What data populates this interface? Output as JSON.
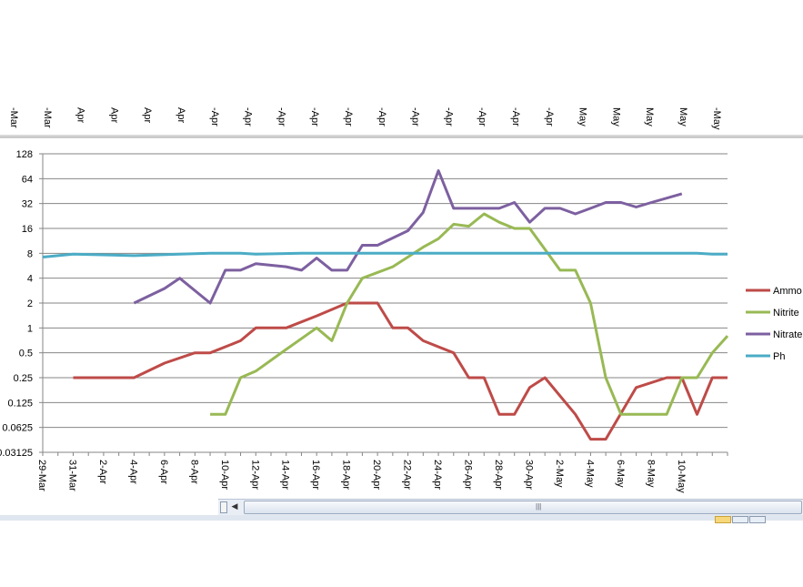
{
  "chart_data": {
    "type": "line",
    "title": "",
    "xlabel": "",
    "ylabel": "",
    "y_scale": "log2",
    "ylim": [
      0.03125,
      128
    ],
    "y_ticks": [
      "128",
      "64",
      "32",
      "16",
      "8",
      "4",
      "2",
      "1",
      "0.5",
      "0.25",
      "0.125",
      "0.0625",
      "0.03125"
    ],
    "x_start": "29-Mar",
    "x_end": "11-May",
    "x_ticks": [
      "29-Mar",
      "31-Mar",
      "2-Apr",
      "4-Apr",
      "6-Apr",
      "8-Apr",
      "10-Apr",
      "12-Apr",
      "14-Apr",
      "16-Apr",
      "18-Apr",
      "20-Apr",
      "22-Apr",
      "24-Apr",
      "26-Apr",
      "28-Apr",
      "30-Apr",
      "2-May",
      "4-May",
      "6-May",
      "8-May",
      "10-May"
    ],
    "top_header_labels": [
      "-Mar",
      "-Mar",
      "Apr",
      "Apr",
      "Apr",
      "Apr",
      "-Apr",
      "-Apr",
      "-Apr",
      "-Apr",
      "-Apr",
      "-Apr",
      "-Apr",
      "-Apr",
      "-Apr",
      "-Apr",
      "-Apr",
      "May",
      "May",
      "May",
      "May",
      "-May"
    ],
    "legend_position": "right",
    "series": [
      {
        "name": "Ammonia",
        "display_label": "Ammo",
        "color": "#be4b48",
        "points": [
          [
            2,
            0.25
          ],
          [
            6,
            0.25
          ],
          [
            8,
            0.375
          ],
          [
            10,
            0.5
          ],
          [
            11,
            0.5
          ],
          [
            13,
            0.7
          ],
          [
            14,
            1
          ],
          [
            16,
            1
          ],
          [
            18,
            1.4
          ],
          [
            20,
            2
          ],
          [
            22,
            2
          ],
          [
            23,
            1
          ],
          [
            24,
            1
          ],
          [
            25,
            0.7
          ],
          [
            27,
            0.5
          ],
          [
            28,
            0.25
          ],
          [
            29,
            0.25
          ],
          [
            30,
            0.09
          ],
          [
            31,
            0.09
          ],
          [
            32,
            0.19
          ],
          [
            33,
            0.25
          ],
          [
            35,
            0.09
          ],
          [
            36,
            0.045
          ],
          [
            37,
            0.045
          ],
          [
            39,
            0.19
          ],
          [
            41,
            0.25
          ],
          [
            42,
            0.25
          ],
          [
            43,
            0.09
          ],
          [
            44,
            0.25
          ],
          [
            45,
            0.25
          ]
        ]
      },
      {
        "name": "Nitrite",
        "display_label": "Nitrite",
        "color": "#98b954",
        "points": [
          [
            11,
            0.09
          ],
          [
            12,
            0.09
          ],
          [
            13,
            0.25
          ],
          [
            14,
            0.3
          ],
          [
            16,
            0.55
          ],
          [
            18,
            1
          ],
          [
            19,
            0.7
          ],
          [
            20,
            2
          ],
          [
            21,
            4
          ],
          [
            23,
            5.5
          ],
          [
            25,
            9.5
          ],
          [
            26,
            12
          ],
          [
            27,
            18
          ],
          [
            28,
            17
          ],
          [
            29,
            24
          ],
          [
            30,
            19
          ],
          [
            31,
            16
          ],
          [
            32,
            16
          ],
          [
            34,
            5
          ],
          [
            35,
            5
          ],
          [
            36,
            2
          ],
          [
            37,
            0.25
          ],
          [
            38,
            0.09
          ],
          [
            40,
            0.09
          ],
          [
            41,
            0.09
          ],
          [
            42,
            0.25
          ],
          [
            43,
            0.25
          ],
          [
            44,
            0.5
          ],
          [
            45,
            0.8
          ]
        ]
      },
      {
        "name": "Nitrate",
        "display_label": "Nitrate",
        "color": "#7d60a0",
        "points": [
          [
            6,
            2
          ],
          [
            8,
            3
          ],
          [
            9,
            4
          ],
          [
            11,
            2
          ],
          [
            12,
            5
          ],
          [
            13,
            5
          ],
          [
            14,
            6
          ],
          [
            16,
            5.5
          ],
          [
            17,
            5
          ],
          [
            18,
            7
          ],
          [
            19,
            5
          ],
          [
            20,
            5
          ],
          [
            21,
            10
          ],
          [
            22,
            10
          ],
          [
            24,
            15
          ],
          [
            25,
            25
          ],
          [
            26,
            80
          ],
          [
            27,
            28
          ],
          [
            28,
            28
          ],
          [
            29,
            28
          ],
          [
            30,
            28
          ],
          [
            31,
            33
          ],
          [
            32,
            19
          ],
          [
            33,
            28
          ],
          [
            34,
            28
          ],
          [
            35,
            24
          ],
          [
            36,
            28
          ],
          [
            37,
            33
          ],
          [
            38,
            33
          ],
          [
            39,
            29
          ],
          [
            40,
            33
          ],
          [
            42,
            42
          ]
        ]
      },
      {
        "name": "Ph",
        "display_label": "Ph",
        "color": "#4bacc6",
        "points": [
          [
            0,
            7.2
          ],
          [
            2,
            7.8
          ],
          [
            6,
            7.5
          ],
          [
            9,
            7.8
          ],
          [
            11,
            8
          ],
          [
            13,
            8
          ],
          [
            14,
            7.8
          ],
          [
            17,
            8
          ],
          [
            20,
            8
          ],
          [
            25,
            8
          ],
          [
            30,
            8
          ],
          [
            35,
            8
          ],
          [
            40,
            8
          ],
          [
            43,
            8
          ],
          [
            44,
            7.8
          ],
          [
            45,
            7.8
          ]
        ]
      }
    ]
  },
  "scrollbar": {
    "grip_symbol": "|||",
    "left_arrow": "◀"
  }
}
